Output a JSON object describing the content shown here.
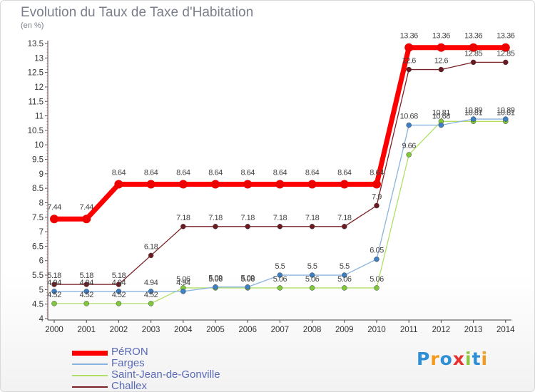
{
  "title": "Evolution du Taux de Taxe d'Habitation",
  "unit_label": "(en %)",
  "logo": {
    "text": "Proxiti",
    "letters": [
      {
        "ch": "P",
        "color": "#2e8fd6"
      },
      {
        "ch": "r",
        "color": "#f39a1e"
      },
      {
        "ch": "o",
        "color": "#2e8fd6"
      },
      {
        "ch": "x",
        "color": "#e5312f"
      },
      {
        "ch": "i",
        "color": "#8cc63f"
      },
      {
        "ch": "t",
        "color": "#2e8fd6"
      },
      {
        "ch": "i",
        "color": "#f39a1e"
      }
    ]
  },
  "chart_data": {
    "type": "line",
    "title": "Evolution du Taux de Taxe d'Habitation",
    "ylabel": "(en %)",
    "xlabel": "",
    "ylim": [
      4,
      13.5
    ],
    "y_ticks": [
      "4",
      "4.5",
      "5",
      "5.5",
      "6",
      "6.5",
      "7",
      "7.5",
      "8",
      "8.5",
      "9",
      "9.5",
      "10",
      "10.5",
      "11",
      "11.5",
      "12",
      "12.5",
      "13",
      "13.5"
    ],
    "categories": [
      "2000",
      "2001",
      "2002",
      "2003",
      "2004",
      "2005",
      "2006",
      "2007",
      "2008",
      "2009",
      "2010",
      "2011",
      "2012",
      "2013",
      "2014"
    ],
    "grid": false,
    "legend_position": "bottom-left",
    "series": [
      {
        "name": "PéRON",
        "color": "#ff0000",
        "marker_color": "#ee0000",
        "values": [
          7.44,
          7.44,
          8.64,
          8.64,
          8.64,
          8.64,
          8.64,
          8.64,
          8.64,
          8.64,
          8.64,
          13.36,
          13.36,
          13.36,
          13.36
        ],
        "labels": [
          "7.44",
          "7.44",
          "8.64",
          "8.64",
          "8.64",
          "8.64",
          "8.64",
          "8.64",
          "8.64",
          "8.64",
          "8.64",
          "13.36",
          "13.36",
          "13.36",
          "13.36"
        ]
      },
      {
        "name": "Farges",
        "color": "#8ab4e0",
        "marker_color": "#3d7fc4",
        "values": [
          4.94,
          4.94,
          4.94,
          4.94,
          4.94,
          5.09,
          5.09,
          5.5,
          5.5,
          5.5,
          6.05,
          10.68,
          10.68,
          10.89,
          10.89
        ],
        "labels": [
          "4.94",
          "4.94",
          "4.94",
          "4.94",
          "4.94",
          "5.09",
          "5.09",
          "5.5",
          "5.5",
          "5.5",
          "6.05",
          "10.68",
          "10.68",
          "10.89",
          "10.89"
        ]
      },
      {
        "name": "Saint-Jean-de-Gonville",
        "color": "#b0e068",
        "marker_color": "#7ec83a",
        "values": [
          4.52,
          4.52,
          4.52,
          4.52,
          5.06,
          5.06,
          5.06,
          5.06,
          5.06,
          5.06,
          5.06,
          9.66,
          10.81,
          10.81,
          10.81
        ],
        "labels": [
          "4.52",
          "4.52",
          "4.52",
          "4.52",
          "5.06",
          "5.06",
          "5.06",
          "5.06",
          "5.06",
          "5.06",
          "5.06",
          "9.66",
          "10.81",
          "10.81",
          "10.81"
        ]
      },
      {
        "name": "Challex",
        "color": "#7b2228",
        "marker_color": "#6a1a20",
        "values": [
          5.18,
          5.18,
          5.18,
          6.18,
          7.18,
          7.18,
          7.18,
          7.18,
          7.18,
          7.18,
          7.9,
          12.6,
          12.6,
          12.85,
          12.85
        ],
        "labels": [
          "5.18",
          "5.18",
          "5.18",
          "6.18",
          "7.18",
          "7.18",
          "7.18",
          "7.18",
          "7.18",
          "7.18",
          "7.9",
          "12.6",
          "12.6",
          "12.85",
          "12.85"
        ]
      }
    ]
  }
}
